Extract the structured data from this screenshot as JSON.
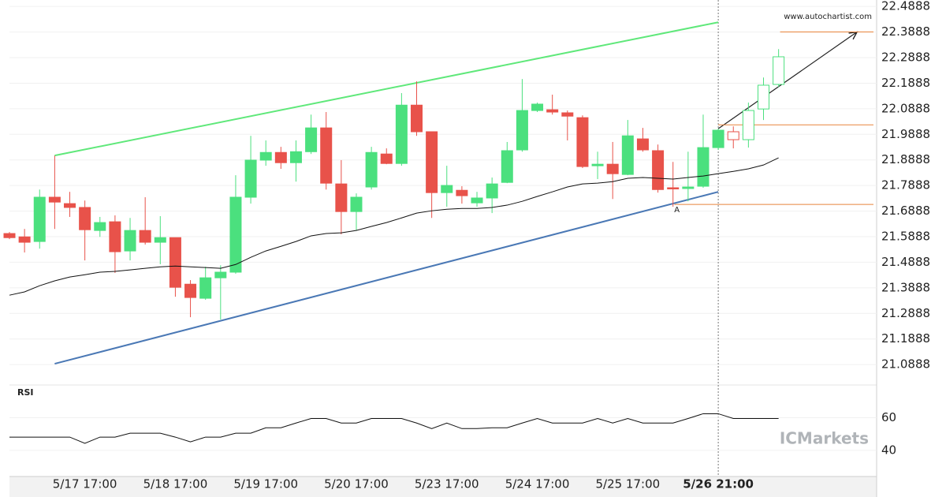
{
  "chart_data": [
    {
      "type": "candlestick",
      "watermark": "www.autochartist.com",
      "brand": "ICMarkets",
      "annotation": "A",
      "categories": [
        null,
        null,
        null,
        null,
        null,
        "5/17 17:00",
        null,
        null,
        null,
        null,
        null,
        "5/18 17:00",
        null,
        null,
        null,
        null,
        null,
        "5/19 17:00",
        null,
        null,
        null,
        null,
        null,
        "5/20 17:00",
        null,
        null,
        null,
        null,
        null,
        "5/23 17:00",
        null,
        null,
        null,
        null,
        null,
        "5/24 17:00",
        null,
        null,
        null,
        null,
        null,
        "5/25 17:00",
        null,
        null,
        null,
        null,
        null,
        "5/26 21:00",
        null,
        null,
        null,
        null
      ],
      "open": [
        21.601,
        21.588,
        21.57,
        21.743,
        21.718,
        21.703,
        21.613,
        21.647,
        21.533,
        21.613,
        21.567,
        21.585,
        21.403,
        21.348,
        21.428,
        21.45,
        21.743,
        21.888,
        21.918,
        21.878,
        21.921,
        22.014,
        21.795,
        21.687,
        21.783,
        21.912,
        21.875,
        22.103,
        21.999,
        21.761,
        21.77,
        21.721,
        21.74,
        21.801,
        21.928,
        22.082,
        22.085,
        22.073,
        22.054,
        21.866,
        21.872,
        21.832,
        21.971,
        21.925,
        21.78,
        21.777,
        21.786,
        21.937,
        21.999,
        21.968,
        22.088,
        22.184
      ],
      "high": [
        21.607,
        21.619,
        21.773,
        21.906,
        21.764,
        21.73,
        21.666,
        21.672,
        21.662,
        21.743,
        21.669,
        21.585,
        21.419,
        21.471,
        21.477,
        21.829,
        21.983,
        21.965,
        21.94,
        21.965,
        22.066,
        22.076,
        21.888,
        21.758,
        21.94,
        21.934,
        22.15,
        22.196,
        21.999,
        21.866,
        21.786,
        21.764,
        21.82,
        21.959,
        22.205,
        22.113,
        22.144,
        22.082,
        22.063,
        21.921,
        21.959,
        22.045,
        22.014,
        21.949,
        21.881,
        21.921,
        22.066,
        22.011,
        22.02,
        22.113,
        22.211,
        22.322
      ],
      "low": [
        21.579,
        21.527,
        21.542,
        21.619,
        21.666,
        21.496,
        21.588,
        21.447,
        21.496,
        21.558,
        21.481,
        21.354,
        21.274,
        21.342,
        21.265,
        21.444,
        21.718,
        21.866,
        21.854,
        21.804,
        21.912,
        21.773,
        21.598,
        21.613,
        21.773,
        21.872,
        21.866,
        21.983,
        21.662,
        21.706,
        21.718,
        21.706,
        21.681,
        21.798,
        21.921,
        22.076,
        22.066,
        21.965,
        21.857,
        21.814,
        21.736,
        21.829,
        21.921,
        21.761,
        21.706,
        21.727,
        21.78,
        21.928,
        21.934,
        21.937,
        22.045,
        22.174
      ],
      "close": [
        21.585,
        21.567,
        21.743,
        21.724,
        21.703,
        21.616,
        21.644,
        21.53,
        21.613,
        21.567,
        21.585,
        21.391,
        21.351,
        21.428,
        21.45,
        21.743,
        21.888,
        21.918,
        21.878,
        21.921,
        22.014,
        21.798,
        21.687,
        21.743,
        21.918,
        21.875,
        22.103,
        21.999,
        21.761,
        21.789,
        21.749,
        21.74,
        21.795,
        21.925,
        22.082,
        22.107,
        22.076,
        22.06,
        21.863,
        21.872,
        21.835,
        21.983,
        21.928,
        21.773,
        21.777,
        21.783,
        21.937,
        22.005,
        21.968,
        22.082,
        22.181,
        22.292
      ],
      "up_color": "#4be07e",
      "down_color": "#e8524a",
      "pattern_end_index": 47,
      "average": {
        "color": "#111111",
        "values": [
          21.36,
          21.373,
          21.397,
          21.416,
          21.431,
          21.44,
          21.45,
          21.453,
          21.459,
          21.465,
          21.471,
          21.474,
          21.471,
          21.468,
          21.465,
          21.48,
          21.508,
          21.533,
          21.551,
          21.57,
          21.592,
          21.601,
          21.604,
          21.613,
          21.629,
          21.644,
          21.662,
          21.681,
          21.69,
          21.696,
          21.699,
          21.699,
          21.703,
          21.712,
          21.727,
          21.746,
          21.764,
          21.783,
          21.795,
          21.798,
          21.804,
          21.817,
          21.82,
          21.817,
          21.814,
          21.82,
          21.826,
          21.835,
          21.844,
          21.854,
          21.869,
          21.897
        ]
      },
      "lines": [
        {
          "color": "#5fe87a",
          "x": [
            3,
            47
          ],
          "values": [
            21.906,
            22.427
          ]
        },
        {
          "color": "#4a78b5",
          "x": [
            3,
            47
          ],
          "values": [
            21.092,
            21.764
          ]
        },
        {
          "color": "#222222",
          "x": [
            47,
            56.2
          ],
          "values": [
            22.011,
            22.389
          ],
          "arrow": true
        }
      ],
      "levels": [
        {
          "value": 22.389,
          "color": "#e8843c",
          "x_start": 51.1
        },
        {
          "value": 22.026,
          "color": "#e8843c",
          "x_start": 47
        },
        {
          "value": 21.715,
          "color": "#e8843c",
          "x_start": 44.1
        }
      ],
      "ylim": [
        21.009,
        22.514
      ],
      "yticks": [
        22.4888,
        22.3888,
        22.2888,
        22.1888,
        22.0888,
        21.9888,
        21.8888,
        21.7888,
        21.6888,
        21.5888,
        21.4888,
        21.3888,
        21.2888,
        21.1888,
        21.0888
      ],
      "grid": true
    },
    {
      "type": "line",
      "title": "RSI",
      "color": "#111111",
      "values": [
        48.1,
        48.1,
        48.1,
        48.1,
        48.1,
        44.3,
        48.1,
        48.1,
        50.5,
        50.5,
        50.5,
        48.1,
        45.2,
        48.1,
        48.1,
        50.5,
        50.5,
        53.8,
        53.8,
        56.7,
        59.5,
        59.5,
        56.7,
        56.7,
        59.5,
        59.5,
        59.5,
        56.7,
        53.3,
        56.7,
        53.3,
        53.3,
        53.8,
        53.8,
        56.7,
        59.5,
        56.7,
        56.7,
        56.7,
        59.5,
        56.7,
        59.5,
        56.7,
        56.7,
        56.7,
        59.5,
        62.4,
        62.4,
        59.5,
        59.5,
        59.5,
        59.5
      ],
      "ylim": [
        24,
        80
      ],
      "yticks": [
        40,
        60
      ],
      "grid": true
    }
  ]
}
